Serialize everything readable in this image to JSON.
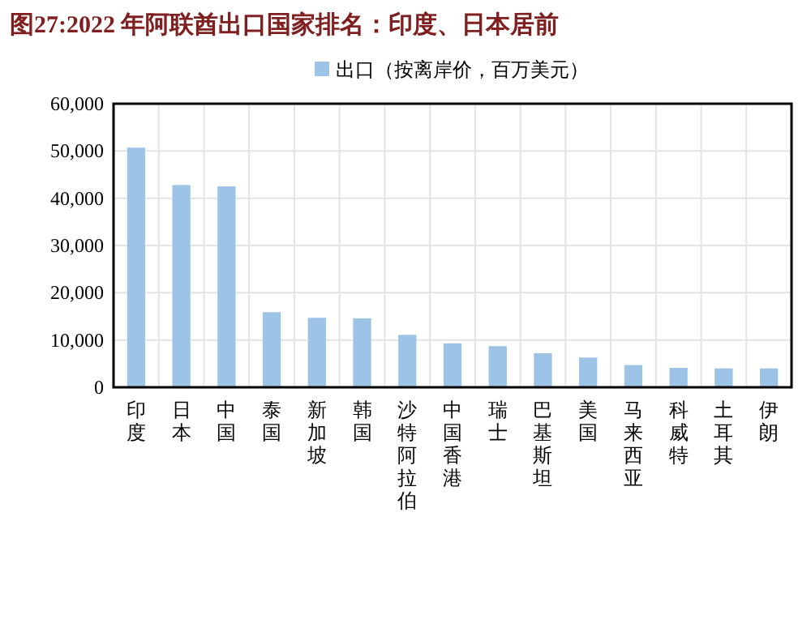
{
  "chart_data": {
    "type": "bar",
    "title": "图27:2022 年阿联酋出口国家排名：印度、日本居前",
    "categories": [
      "印度",
      "日本",
      "中国",
      "泰国",
      "新加坡",
      "韩国",
      "沙特阿拉伯",
      "中国香港",
      "瑞士",
      "巴基斯坦",
      "美国",
      "马来西亚",
      "科威特",
      "土耳其",
      "伊朗"
    ],
    "series": [
      {
        "name": "出口（按离岸价，百万美元）",
        "color": "#9dc3e6",
        "values": [
          50700,
          42800,
          42500,
          15900,
          14700,
          14600,
          11100,
          9300,
          8700,
          7200,
          6300,
          4700,
          4100,
          4000,
          4000
        ]
      }
    ],
    "ylim": [
      0,
      60000
    ],
    "yticks": [
      {
        "value": 0,
        "label": "0"
      },
      {
        "value": 10000,
        "label": "10,000"
      },
      {
        "value": 20000,
        "label": "20,000"
      },
      {
        "value": 30000,
        "label": "30,000"
      },
      {
        "value": 40000,
        "label": "40,000"
      },
      {
        "value": 50000,
        "label": "50,000"
      },
      {
        "value": 60000,
        "label": "60,000"
      }
    ],
    "grid": true,
    "legend": "top"
  }
}
